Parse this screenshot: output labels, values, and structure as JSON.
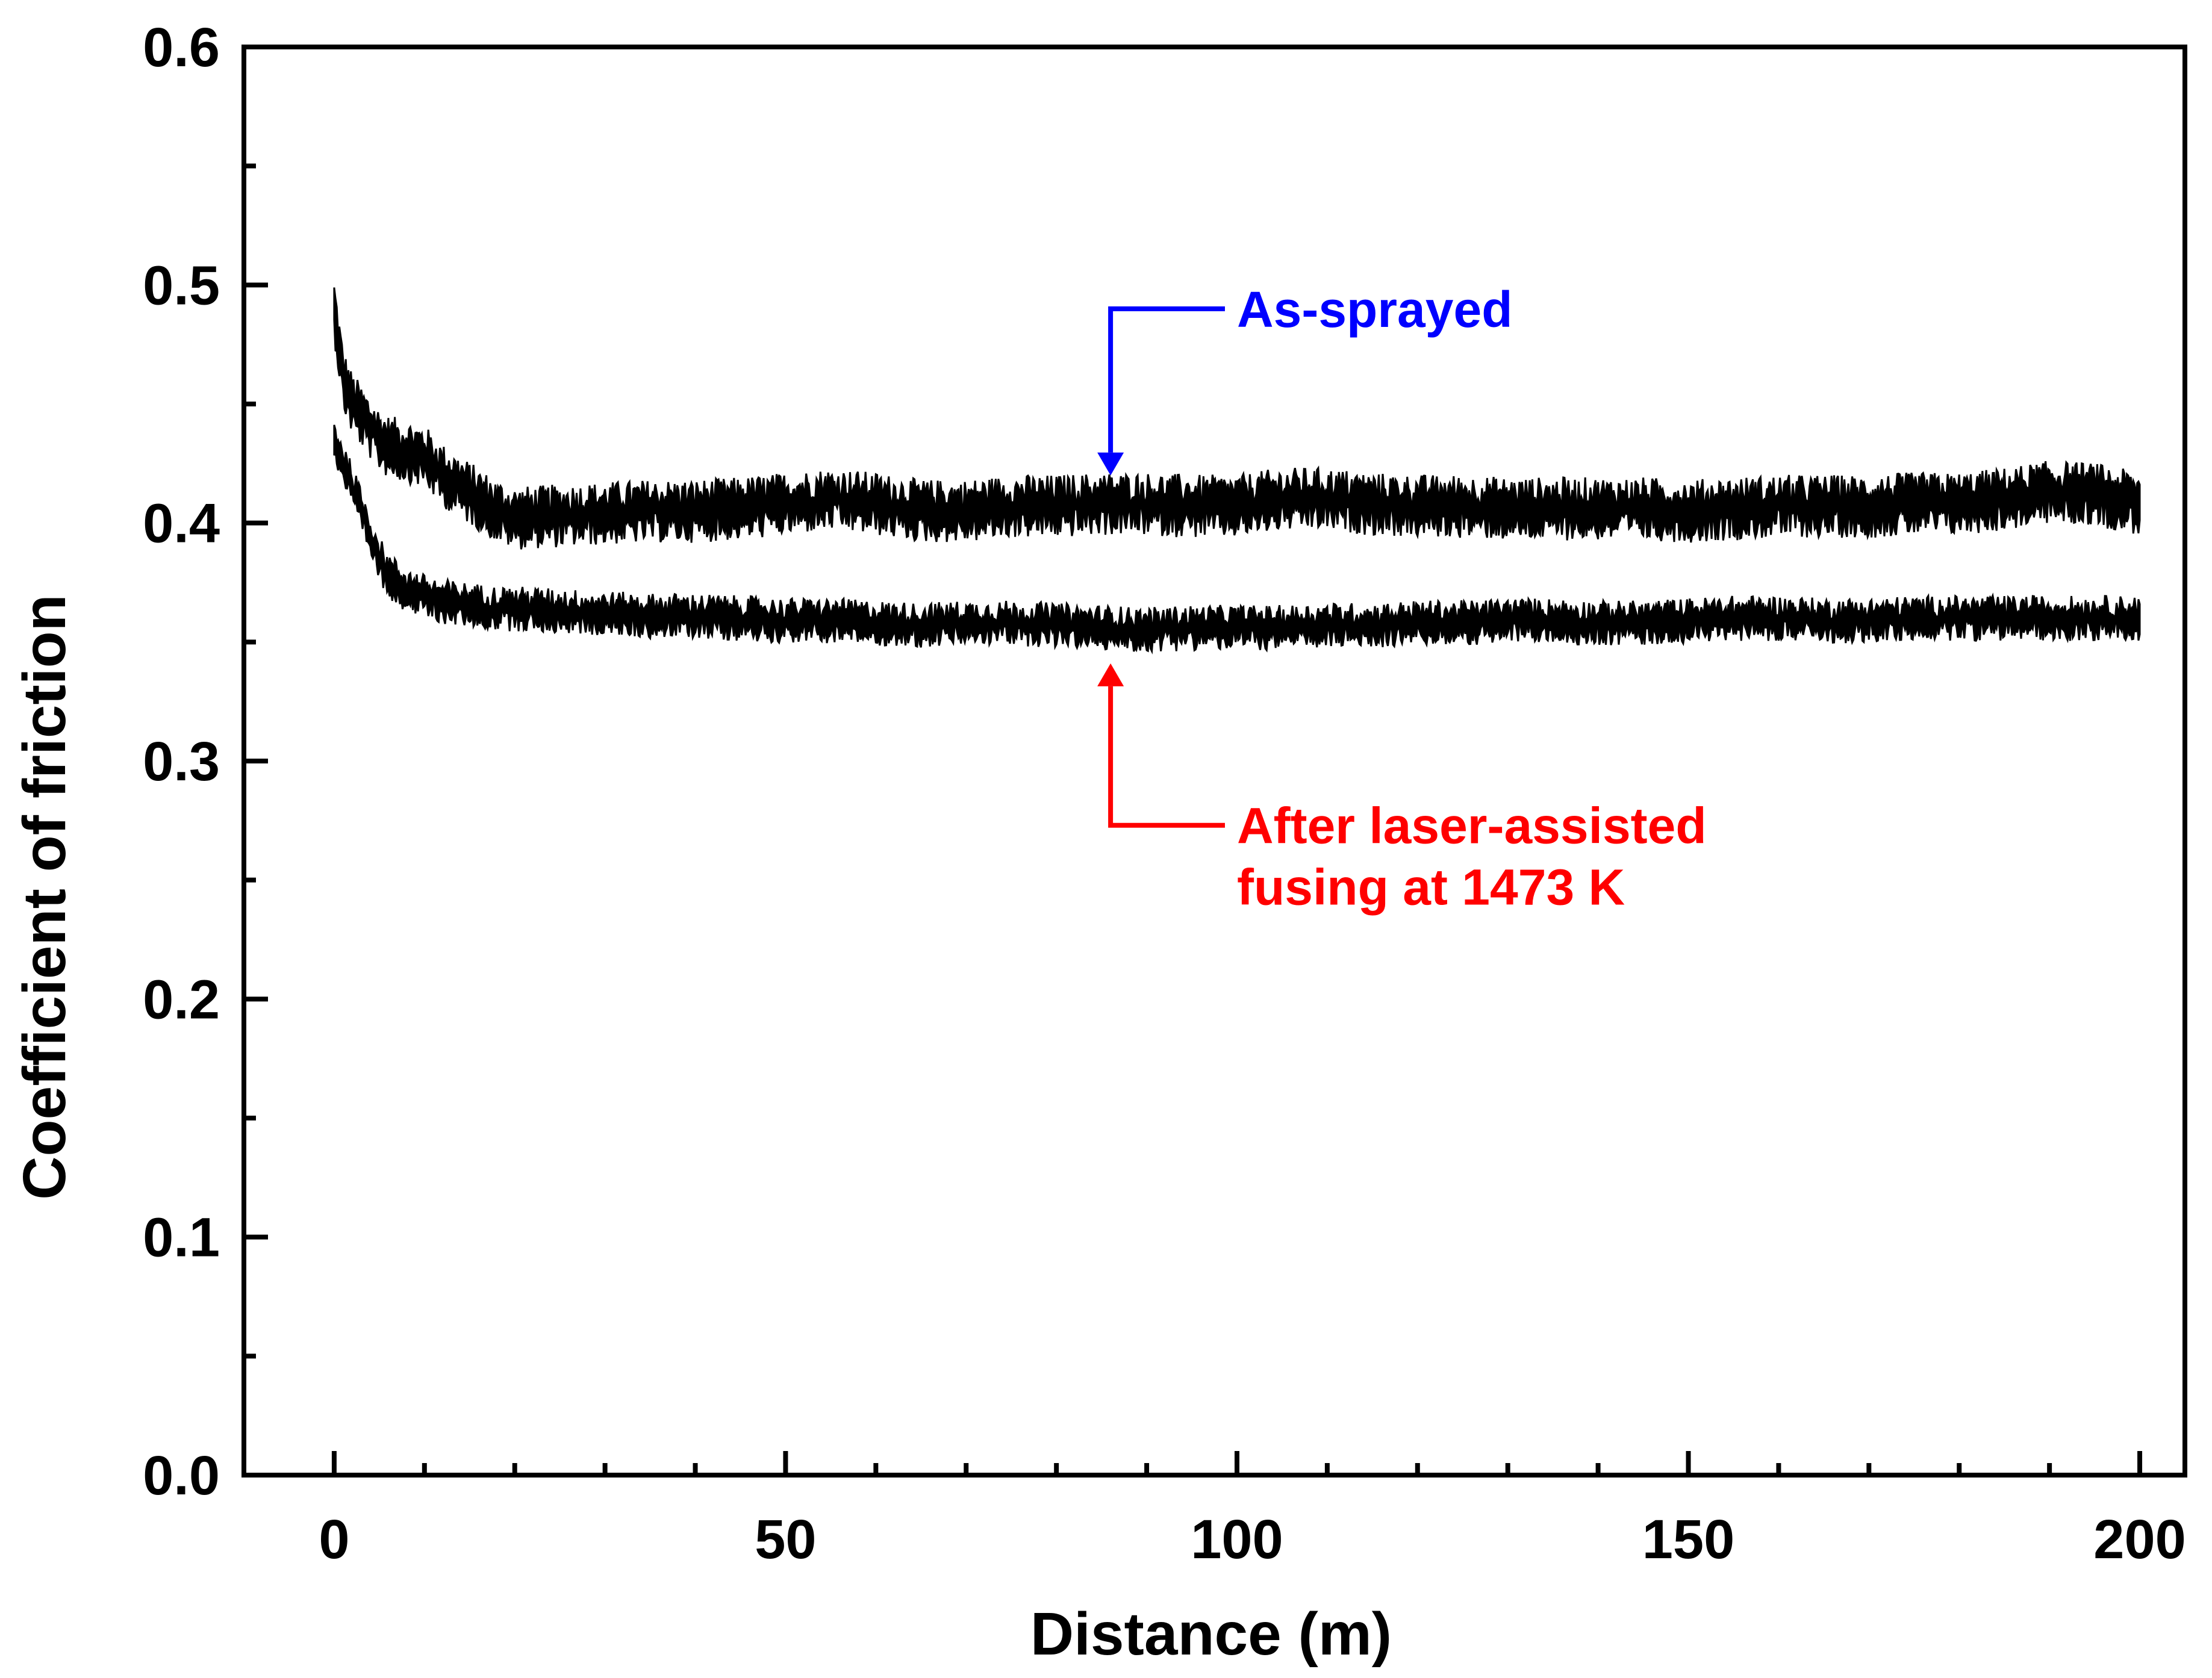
{
  "chart_data": {
    "type": "line",
    "title": "",
    "xlabel": "Distance (m)",
    "ylabel": "Coefficient of friction",
    "xlim": [
      -10,
      205
    ],
    "ylim": [
      0.0,
      0.6
    ],
    "xticks": [
      0,
      50,
      100,
      150,
      200
    ],
    "xtick_labels": [
      "0",
      "50",
      "100",
      "150",
      "200"
    ],
    "yticks": [
      0.0,
      0.1,
      0.2,
      0.3,
      0.4,
      0.5,
      0.6
    ],
    "ytick_labels": [
      "0.0",
      "0.1",
      "0.2",
      "0.3",
      "0.4",
      "0.5",
      "0.6"
    ],
    "x_minor_step": 10,
    "y_minor_step": 0.05,
    "grid": false,
    "series": [
      {
        "name": "As-sprayed",
        "color": "#000000",
        "band_width": 0.014,
        "x": [
          0,
          1,
          2,
          3,
          4,
          5,
          6,
          8,
          10,
          12,
          14,
          16,
          18,
          20,
          25,
          30,
          35,
          40,
          45,
          50,
          55,
          60,
          65,
          70,
          75,
          80,
          85,
          90,
          95,
          100,
          105,
          110,
          115,
          120,
          125,
          130,
          135,
          140,
          145,
          150,
          155,
          160,
          165,
          170,
          175,
          180,
          185,
          190,
          195,
          200
        ],
        "values": [
          0.49,
          0.46,
          0.45,
          0.445,
          0.44,
          0.435,
          0.432,
          0.43,
          0.428,
          0.42,
          0.415,
          0.41,
          0.405,
          0.402,
          0.403,
          0.404,
          0.405,
          0.405,
          0.406,
          0.408,
          0.41,
          0.408,
          0.405,
          0.405,
          0.407,
          0.407,
          0.408,
          0.408,
          0.407,
          0.407,
          0.41,
          0.41,
          0.408,
          0.407,
          0.407,
          0.406,
          0.406,
          0.406,
          0.406,
          0.405,
          0.406,
          0.407,
          0.407,
          0.407,
          0.408,
          0.408,
          0.41,
          0.413,
          0.412,
          0.408
        ]
      },
      {
        "name": "After laser-assisted fusing at 1473 K",
        "color": "#000000",
        "band_width": 0.01,
        "x": [
          0,
          1,
          2,
          3,
          4,
          5,
          6,
          8,
          10,
          12,
          14,
          16,
          18,
          20,
          25,
          30,
          35,
          40,
          45,
          50,
          55,
          60,
          65,
          70,
          75,
          80,
          85,
          90,
          95,
          100,
          105,
          110,
          115,
          120,
          125,
          130,
          135,
          140,
          145,
          150,
          155,
          160,
          165,
          170,
          175,
          180,
          185,
          190,
          195,
          200
        ],
        "values": [
          0.435,
          0.425,
          0.415,
          0.405,
          0.395,
          0.385,
          0.378,
          0.372,
          0.369,
          0.367,
          0.366,
          0.365,
          0.364,
          0.364,
          0.363,
          0.362,
          0.361,
          0.361,
          0.36,
          0.359,
          0.359,
          0.358,
          0.357,
          0.358,
          0.358,
          0.357,
          0.356,
          0.355,
          0.356,
          0.356,
          0.356,
          0.357,
          0.357,
          0.358,
          0.358,
          0.359,
          0.359,
          0.358,
          0.358,
          0.359,
          0.36,
          0.36,
          0.359,
          0.359,
          0.36,
          0.36,
          0.36,
          0.36,
          0.36,
          0.36
        ]
      }
    ],
    "annotations": [
      {
        "lines": [
          "As-sprayed"
        ],
        "color": "#0000ff",
        "arrow_tip": [
          86,
          0.42
        ],
        "elbow": [
          86,
          0.49
        ],
        "text_anchor": [
          100,
          0.49
        ],
        "direction": "down"
      },
      {
        "lines": [
          "After laser-assisted",
          "fusing at 1473 K"
        ],
        "color": "#ff0000",
        "arrow_tip": [
          86,
          0.341
        ],
        "elbow": [
          86,
          0.273
        ],
        "text_anchor": [
          100,
          0.273
        ],
        "direction": "up"
      }
    ]
  }
}
